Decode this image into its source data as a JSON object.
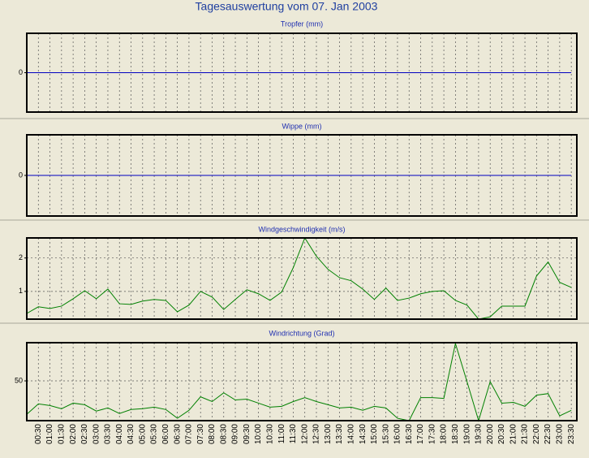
{
  "title": "Tagesauswertung vom 07. Jan 2003",
  "chart_data": [
    {
      "type": "line",
      "title": "Tropfer (mm)",
      "color": "#0000c0",
      "ylim": [
        -1,
        1
      ],
      "yticks": [
        0
      ],
      "values": [
        0,
        0,
        0,
        0,
        0,
        0,
        0,
        0,
        0,
        0,
        0,
        0,
        0,
        0,
        0,
        0,
        0,
        0,
        0,
        0,
        0,
        0,
        0,
        0,
        0,
        0,
        0,
        0,
        0,
        0,
        0,
        0,
        0,
        0,
        0,
        0,
        0,
        0,
        0,
        0,
        0,
        0,
        0,
        0,
        0,
        0,
        0,
        0
      ]
    },
    {
      "type": "line",
      "title": "Wippe (mm)",
      "color": "#0000c0",
      "ylim": [
        -1,
        1
      ],
      "yticks": [
        0
      ],
      "values": [
        0,
        0,
        0,
        0,
        0,
        0,
        0,
        0,
        0,
        0,
        0,
        0,
        0,
        0,
        0,
        0,
        0,
        0,
        0,
        0,
        0,
        0,
        0,
        0,
        0,
        0,
        0,
        0,
        0,
        0,
        0,
        0,
        0,
        0,
        0,
        0,
        0,
        0,
        0,
        0,
        0,
        0,
        0,
        0,
        0,
        0,
        0,
        0
      ]
    },
    {
      "type": "line",
      "title": "Windgeschwindigkeit (m/s)",
      "color": "#008000",
      "ylim": [
        0.17,
        2.6
      ],
      "yticks": [
        1,
        2
      ],
      "grid": true,
      "values": [
        0.34,
        0.54,
        0.49,
        0.56,
        0.78,
        1.02,
        0.78,
        1.07,
        0.63,
        0.61,
        0.71,
        0.76,
        0.73,
        0.39,
        0.59,
        1.0,
        0.83,
        0.46,
        0.76,
        1.05,
        0.93,
        0.73,
        0.98,
        1.71,
        2.6,
        2.05,
        1.66,
        1.41,
        1.32,
        1.07,
        0.76,
        1.1,
        0.73,
        0.8,
        0.93,
        1.0,
        1.02,
        0.73,
        0.59,
        0.17,
        0.24,
        0.56,
        0.56,
        0.56,
        1.46,
        1.88,
        1.27,
        1.12
      ]
    },
    {
      "type": "line",
      "title": "Windrichtung (Grad)",
      "color": "#008000",
      "ylim": [
        0,
        98
      ],
      "yticks": [
        50
      ],
      "grid": true,
      "categories": [
        null,
        "00:30",
        "01:00",
        "01:30",
        "02:00",
        "02:30",
        "03:00",
        "03:30",
        "04:00",
        "04:30",
        "05:00",
        "05:30",
        "06:00",
        "06:30",
        "07:00",
        "07:30",
        "08:00",
        "08:30",
        "09:00",
        "09:30",
        "10:00",
        "10:30",
        "11:00",
        "11:30",
        "12:00",
        "12:30",
        "13:00",
        "13:30",
        "14:00",
        "14:30",
        "15:00",
        "15:30",
        "16:00",
        "16:30",
        "17:00",
        "17:30",
        "18:00",
        "18:30",
        "19:00",
        "19:30",
        "20:00",
        "20:30",
        "21:00",
        "21:30",
        "22:00",
        "22:30",
        "23:00",
        "23:30"
      ],
      "values": [
        8,
        21,
        19,
        15,
        22,
        20,
        12,
        16,
        9,
        14,
        15,
        17,
        14,
        3,
        13,
        30,
        24,
        35,
        26,
        27,
        22,
        17,
        18,
        24,
        29,
        24,
        20,
        16,
        17,
        13,
        18,
        16,
        3,
        0,
        29,
        29,
        28,
        97,
        49,
        0,
        49,
        22,
        23,
        18,
        32,
        34,
        6,
        13
      ]
    }
  ]
}
